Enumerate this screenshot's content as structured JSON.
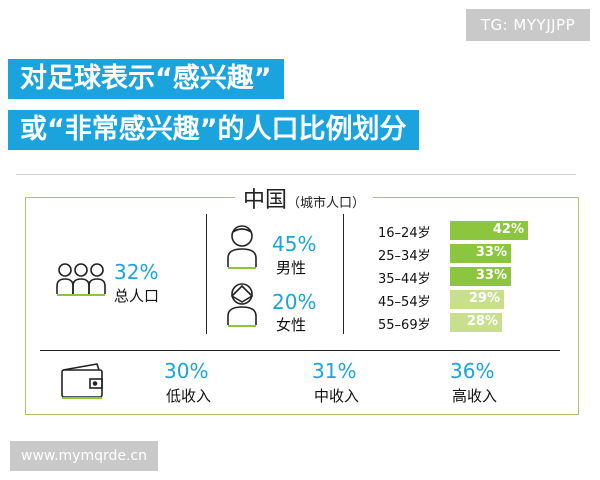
{
  "watermark_top": "TG: MYYJJPP",
  "title": {
    "line1": "对足球表示“感兴趣”",
    "line2": "或“非常感兴趣”的人口比例划分"
  },
  "country": {
    "name": "中国",
    "scope": "（城市人口）"
  },
  "total": {
    "value": "32%",
    "label": "总人口"
  },
  "gender": [
    {
      "value": "45%",
      "label": "男性"
    },
    {
      "value": "20%",
      "label": "女性"
    }
  ],
  "income": [
    {
      "value": "30%",
      "label": "低收入"
    },
    {
      "value": "31%",
      "label": "中收入"
    },
    {
      "value": "36%",
      "label": "高收入"
    }
  ],
  "colors": {
    "accent": "#1aa3dc",
    "bar_dark": "#8cc63f",
    "bar_light": "#c8e08c",
    "frame": "#a8c56b"
  },
  "chart_data": {
    "type": "bar",
    "orientation": "horizontal",
    "categories": [
      "16–24岁",
      "25–34岁",
      "35–44岁",
      "45–54岁",
      "55–69岁"
    ],
    "values": [
      42,
      33,
      33,
      29,
      28
    ],
    "value_labels": [
      "42%",
      "33%",
      "33%",
      "29%",
      "28%"
    ]
  },
  "watermark_bottom": "www.mymqrde.cn"
}
